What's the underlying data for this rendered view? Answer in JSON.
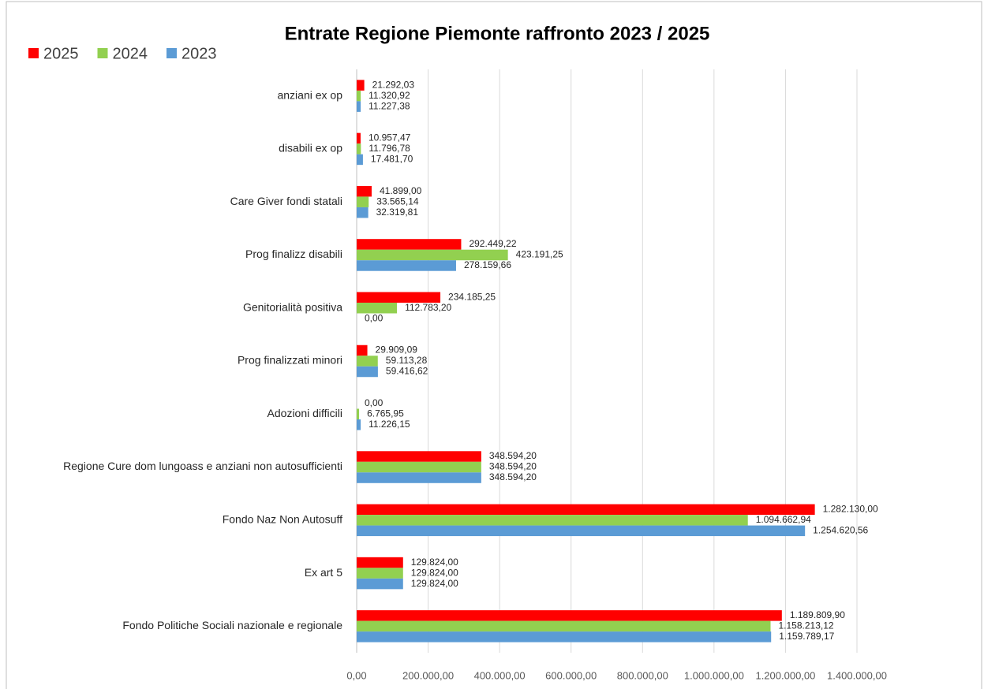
{
  "chart_data": {
    "type": "bar",
    "orientation": "horizontal",
    "title": "Entrate Regione Piemonte raffronto 2023 / 2025",
    "categories": [
      "anziani ex op",
      "disabili ex op",
      "Care Giver fondi statali",
      "Prog finalizz disabili",
      "Genitorialità positiva",
      "Prog finalizzati minori",
      "Adozioni difficili",
      "Regione Cure dom lungoass e anziani non autosufficienti",
      "Fondo Naz Non Autosuff",
      "Ex art 5",
      "Fondo Politiche Sociali nazionale e regionale"
    ],
    "series": [
      {
        "name": "2025",
        "color": "#ff0000",
        "values": [
          21292.03,
          10957.47,
          41899.0,
          292449.22,
          234185.25,
          29909.09,
          0,
          348594.2,
          1282130.0,
          129824.0,
          1189809.9
        ],
        "value_labels": [
          "21.292,03",
          "10.957,47",
          "41.899,00",
          "292.449,22",
          "234.185,25",
          "29.909,09",
          "0,00",
          "348.594,20",
          "1.282.130,00",
          "129.824,00",
          "1.189.809,90"
        ]
      },
      {
        "name": "2024",
        "color": "#92d050",
        "values": [
          11320.92,
          11796.78,
          33565.14,
          423191.25,
          112783.2,
          59113.28,
          6765.95,
          348594.2,
          1094662.94,
          129824.0,
          1158213.12
        ],
        "value_labels": [
          "11.320,92",
          "11.796,78",
          "33.565,14",
          "423.191,25",
          "112.783,20",
          "59.113,28",
          "6.765,95",
          "348.594,20",
          "1.094.662,94",
          "129.824,00",
          "1.158.213,12"
        ]
      },
      {
        "name": "2023",
        "color": "#5b9bd5",
        "values": [
          11227.38,
          17481.7,
          32319.81,
          278159.66,
          0,
          59416.62,
          11226.15,
          348594.2,
          1254620.56,
          129824.0,
          1159789.17
        ],
        "value_labels": [
          "11.227,38",
          "17.481,70",
          "32.319,81",
          "278.159,66",
          "0,00",
          "59.416,62",
          "11.226,15",
          "348.594,20",
          "1.254.620,56",
          "129.824,00",
          "1.159.789,17"
        ]
      }
    ],
    "xlim": [
      0,
      1400000
    ],
    "xticks": [
      {
        "value": 0,
        "label": "0,00"
      },
      {
        "value": 200000,
        "label": "200.000,00"
      },
      {
        "value": 400000,
        "label": "400.000,00"
      },
      {
        "value": 600000,
        "label": "600.000,00"
      },
      {
        "value": 800000,
        "label": "800.000,00"
      },
      {
        "value": 1000000,
        "label": "1.000.000,00"
      },
      {
        "value": 1200000,
        "label": "1.200.000,00"
      },
      {
        "value": 1400000,
        "label": "1.400.000,00"
      }
    ],
    "grid": true,
    "legend": "top-left"
  }
}
